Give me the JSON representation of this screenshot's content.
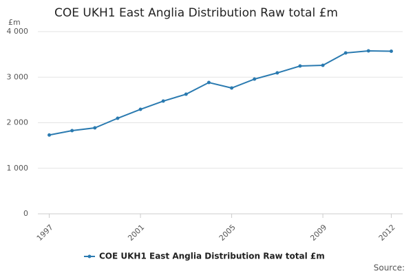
{
  "chart_data": {
    "type": "line",
    "title": "COE UKH1 East Anglia Distribution Raw total £m",
    "y_label": "£m",
    "source": "Source:",
    "x": [
      1997,
      1998,
      1999,
      2000,
      2001,
      2002,
      2003,
      2004,
      2005,
      2006,
      2007,
      2008,
      2009,
      2010,
      2011,
      2012
    ],
    "series": [
      {
        "name": "COE UKH1 East Anglia Distribution Raw total £m",
        "color": "#2a7ab0",
        "values": [
          1730,
          1826,
          1887,
          2098,
          2294,
          2475,
          2626,
          2883,
          2762,
          2958,
          3094,
          3245,
          3260,
          3532,
          3577,
          3570
        ]
      }
    ],
    "xlim": [
      1996.5,
      2012.5
    ],
    "xticks": [
      1997,
      2001,
      2005,
      2009,
      2012
    ],
    "ylim": [
      0,
      4000
    ],
    "yticks": [
      0,
      {
        "value": 1000,
        "label": "1 000"
      },
      {
        "value": 2000,
        "label": "2 000"
      },
      {
        "value": 3000,
        "label": "3 000"
      },
      {
        "value": 4000,
        "label": "4 000"
      }
    ],
    "grid": true
  }
}
